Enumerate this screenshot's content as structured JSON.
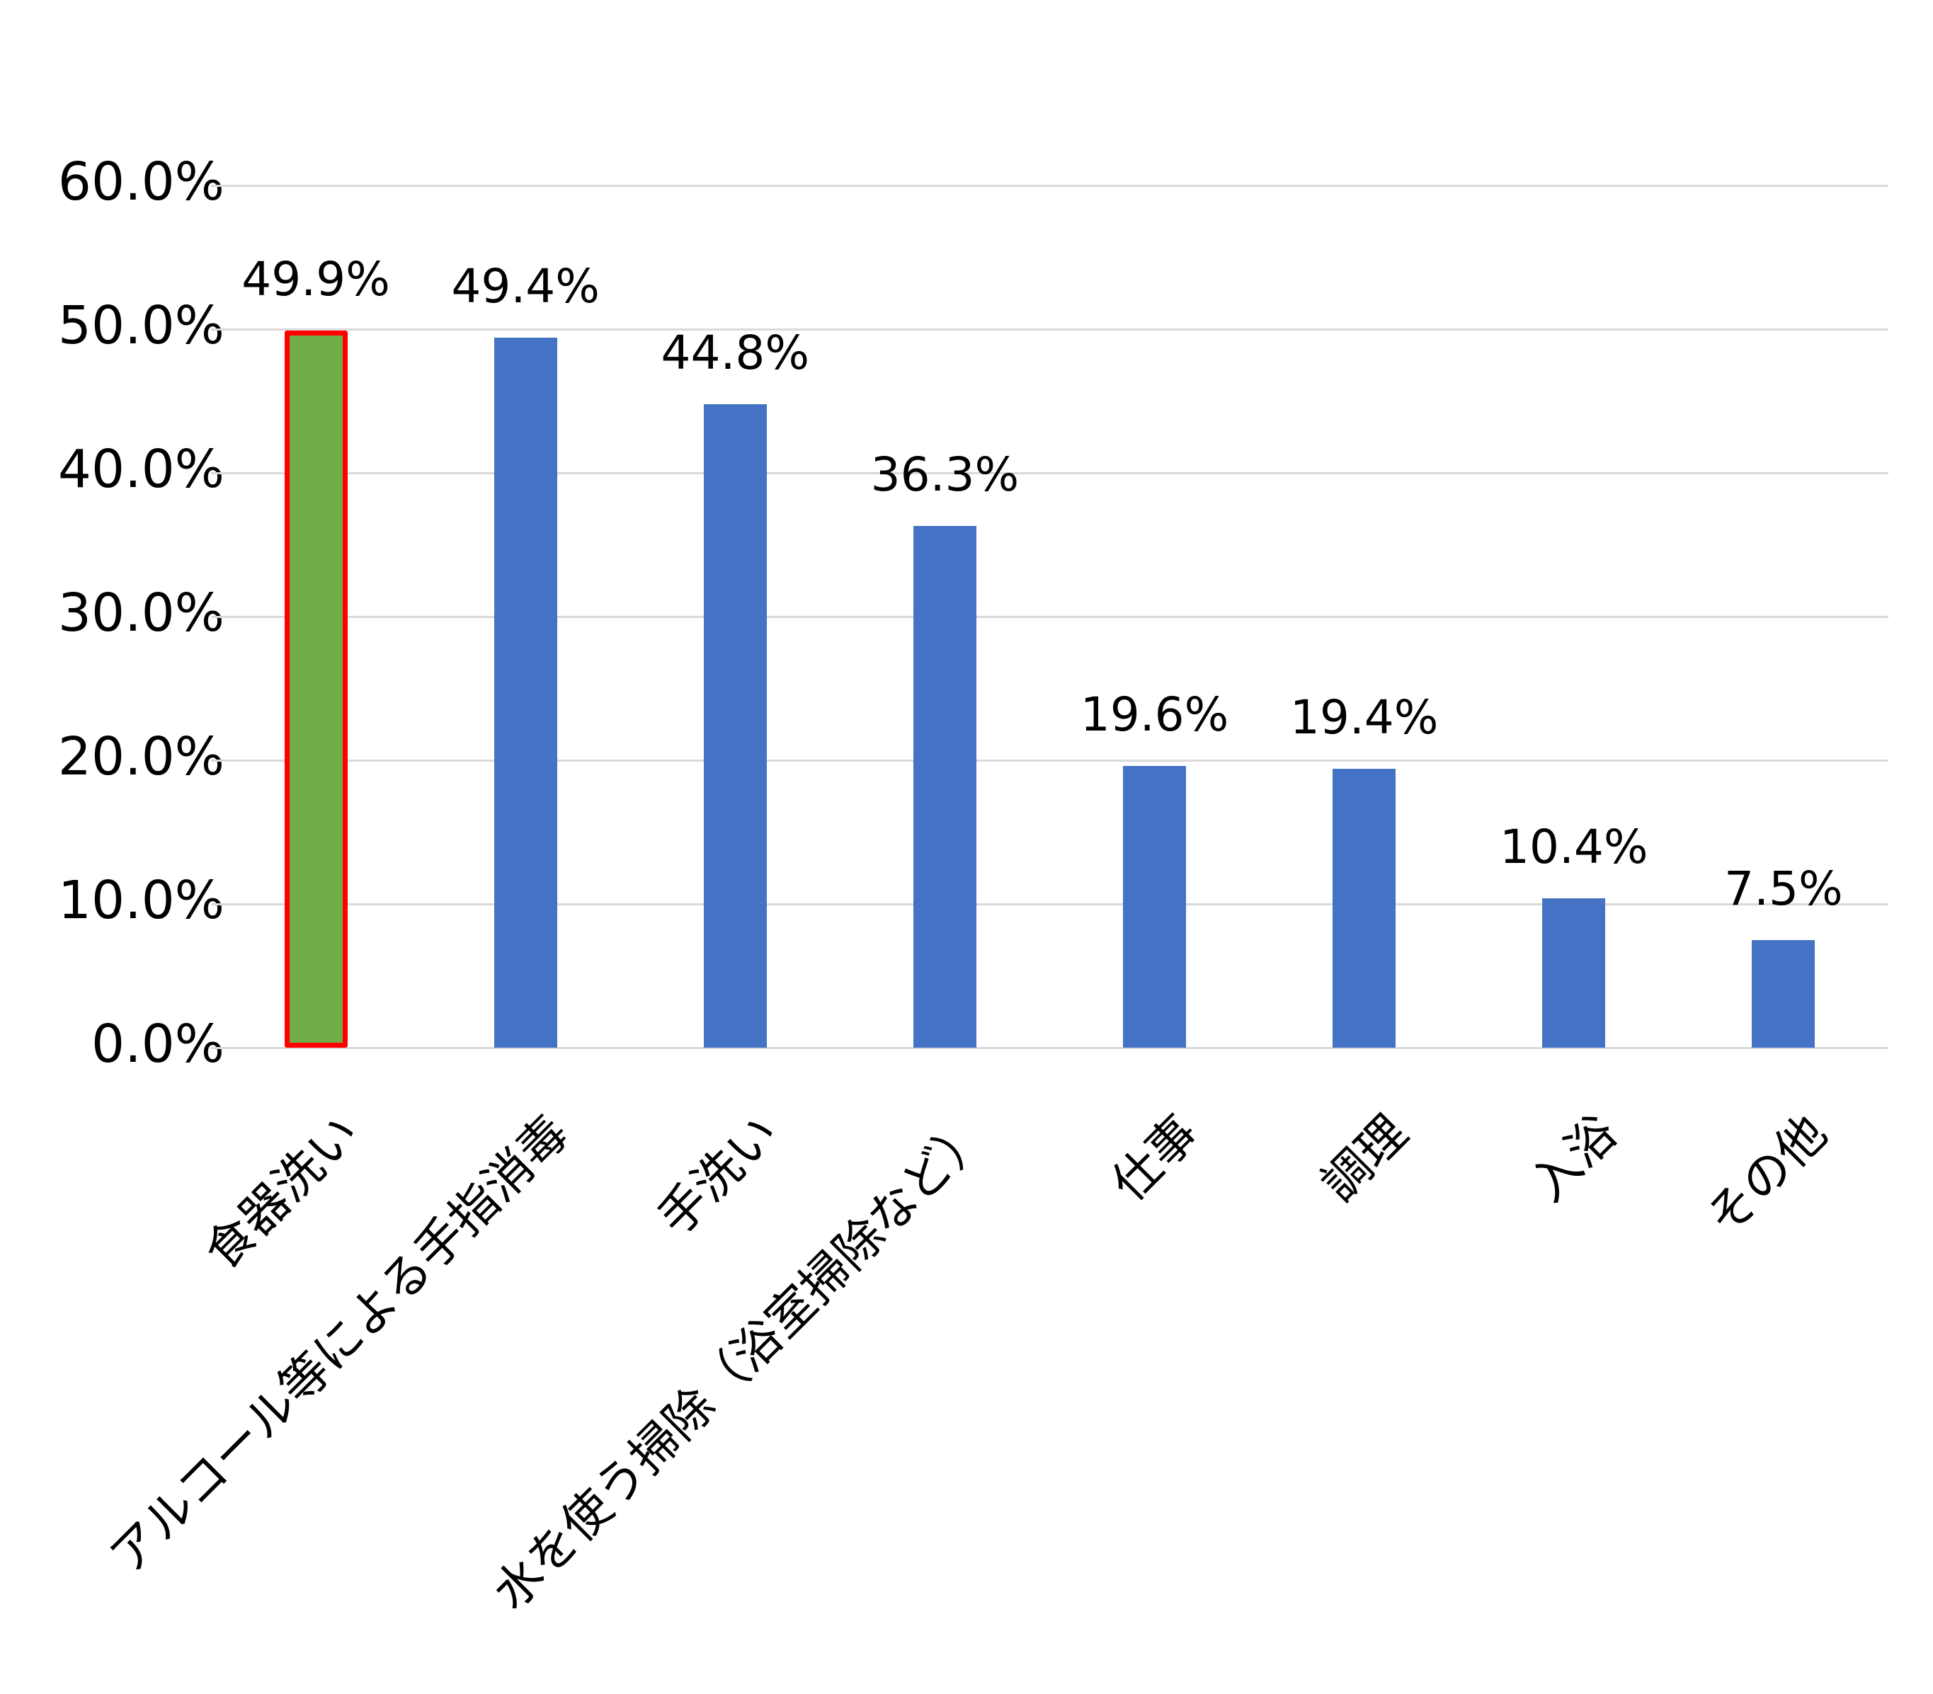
{
  "chart_data": {
    "type": "bar",
    "title": "",
    "xlabel": "",
    "ylabel": "",
    "ylim": [
      0,
      60
    ],
    "yticks": [
      "0.0%",
      "10.0%",
      "20.0%",
      "30.0%",
      "40.0%",
      "50.0%",
      "60.0%"
    ],
    "grid": true,
    "legend": null,
    "categories": [
      "食器洗い",
      "アルコール等による手指消毒",
      "手洗い",
      "水を使う掃除（浴室掃除など）",
      "仕事",
      "調理",
      "入浴",
      "その他"
    ],
    "values": [
      49.9,
      49.4,
      44.8,
      36.3,
      19.6,
      19.4,
      10.4,
      7.5
    ],
    "data_labels": [
      "49.9%",
      "49.4%",
      "44.8%",
      "36.3%",
      "19.6%",
      "19.4%",
      "10.4%",
      "7.5%"
    ],
    "highlighted_index": 0,
    "colors": {
      "bar": "#4472c4",
      "highlight_fill": "#70ad47",
      "highlight_border": "#ff0000",
      "grid": "#d9d9d9",
      "text": "#000000"
    }
  }
}
